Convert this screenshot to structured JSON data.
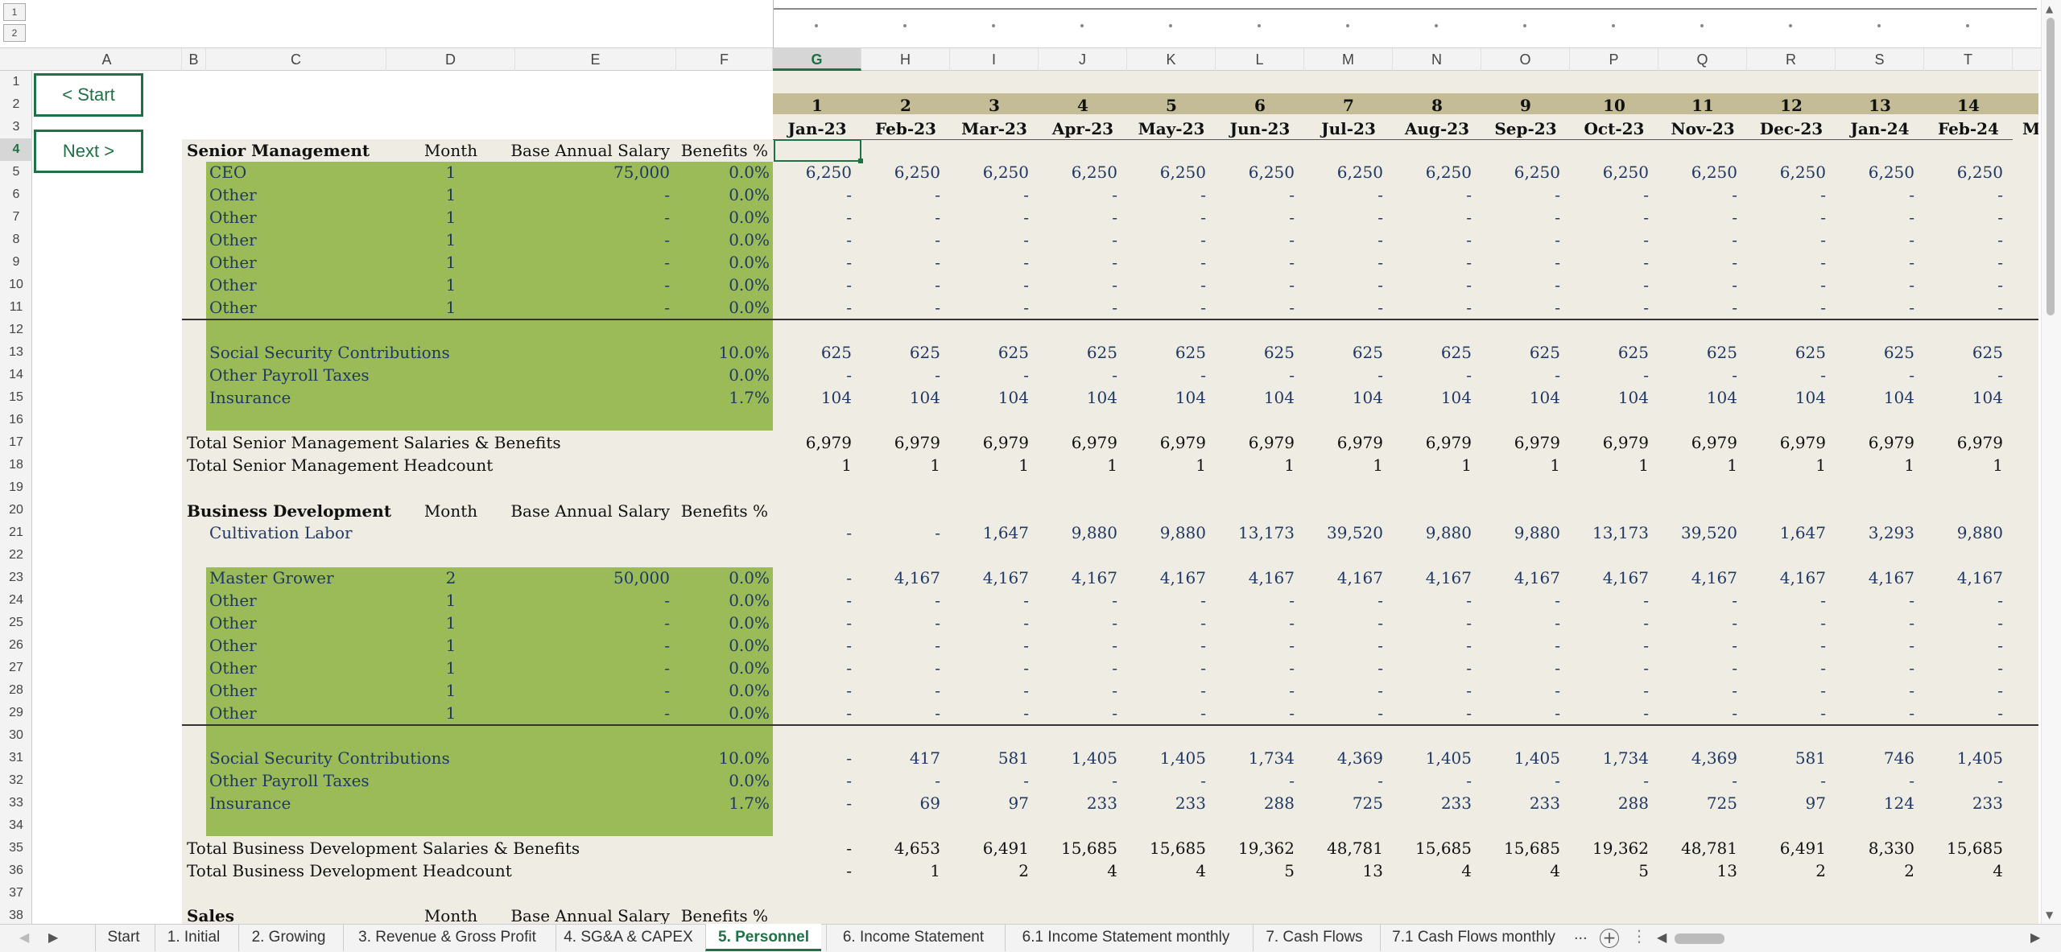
{
  "outline_levels": [
    "1",
    "2"
  ],
  "columns": [
    "A",
    "B",
    "C",
    "D",
    "E",
    "F",
    "G",
    "H",
    "I",
    "J",
    "K",
    "L",
    "M",
    "N",
    "O",
    "P",
    "Q",
    "R",
    "S",
    "T"
  ],
  "rows": [
    "1",
    "2",
    "3",
    "4",
    "5",
    "6",
    "7",
    "8",
    "9",
    "10",
    "11",
    "12",
    "13",
    "14",
    "15",
    "16",
    "17",
    "18",
    "19",
    "20",
    "21",
    "22",
    "23",
    "24",
    "25",
    "26",
    "27",
    "28",
    "29",
    "30",
    "31",
    "32",
    "33",
    "34",
    "35",
    "36",
    "37",
    "38"
  ],
  "buttons": {
    "start": "< Start",
    "next": "Next >"
  },
  "period_numbers": [
    "1",
    "2",
    "3",
    "4",
    "5",
    "6",
    "7",
    "8",
    "9",
    "10",
    "11",
    "12",
    "13",
    "14"
  ],
  "months": [
    "Jan-23",
    "Feb-23",
    "Mar-23",
    "Apr-23",
    "May-23",
    "Jun-23",
    "Jul-23",
    "Aug-23",
    "Sep-23",
    "Oct-23",
    "Nov-23",
    "Dec-23",
    "Jan-24",
    "Feb-24"
  ],
  "months_partial": "M",
  "headers": {
    "month": "Month",
    "salary": "Base Annual Salary",
    "benefits": "Benefits %"
  },
  "sections": {
    "senior": {
      "title": "Senior Management",
      "employees": [
        {
          "name": "CEO",
          "month": "1",
          "salary": "75,000",
          "benefits": "0.0%",
          "values": [
            "6,250",
            "6,250",
            "6,250",
            "6,250",
            "6,250",
            "6,250",
            "6,250",
            "6,250",
            "6,250",
            "6,250",
            "6,250",
            "6,250",
            "6,250",
            "6,250"
          ]
        },
        {
          "name": "Other",
          "month": "1",
          "salary": "-",
          "benefits": "0.0%",
          "values": [
            "-",
            "-",
            "-",
            "-",
            "-",
            "-",
            "-",
            "-",
            "-",
            "-",
            "-",
            "-",
            "-",
            "-"
          ]
        },
        {
          "name": "Other",
          "month": "1",
          "salary": "-",
          "benefits": "0.0%",
          "values": [
            "-",
            "-",
            "-",
            "-",
            "-",
            "-",
            "-",
            "-",
            "-",
            "-",
            "-",
            "-",
            "-",
            "-"
          ]
        },
        {
          "name": "Other",
          "month": "1",
          "salary": "-",
          "benefits": "0.0%",
          "values": [
            "-",
            "-",
            "-",
            "-",
            "-",
            "-",
            "-",
            "-",
            "-",
            "-",
            "-",
            "-",
            "-",
            "-"
          ]
        },
        {
          "name": "Other",
          "month": "1",
          "salary": "-",
          "benefits": "0.0%",
          "values": [
            "-",
            "-",
            "-",
            "-",
            "-",
            "-",
            "-",
            "-",
            "-",
            "-",
            "-",
            "-",
            "-",
            "-"
          ]
        },
        {
          "name": "Other",
          "month": "1",
          "salary": "-",
          "benefits": "0.0%",
          "values": [
            "-",
            "-",
            "-",
            "-",
            "-",
            "-",
            "-",
            "-",
            "-",
            "-",
            "-",
            "-",
            "-",
            "-"
          ]
        },
        {
          "name": "Other",
          "month": "1",
          "salary": "-",
          "benefits": "0.0%",
          "values": [
            "-",
            "-",
            "-",
            "-",
            "-",
            "-",
            "-",
            "-",
            "-",
            "-",
            "-",
            "-",
            "-",
            "-"
          ]
        }
      ],
      "taxes": [
        {
          "name": "Social Security Contributions",
          "rate": "10.0%",
          "values": [
            "625",
            "625",
            "625",
            "625",
            "625",
            "625",
            "625",
            "625",
            "625",
            "625",
            "625",
            "625",
            "625",
            "625"
          ]
        },
        {
          "name": "Other Payroll Taxes",
          "rate": "0.0%",
          "values": [
            "-",
            "-",
            "-",
            "-",
            "-",
            "-",
            "-",
            "-",
            "-",
            "-",
            "-",
            "-",
            "-",
            "-"
          ]
        },
        {
          "name": "Insurance",
          "rate": "1.7%",
          "values": [
            "104",
            "104",
            "104",
            "104",
            "104",
            "104",
            "104",
            "104",
            "104",
            "104",
            "104",
            "104",
            "104",
            "104"
          ]
        }
      ],
      "total_label": "Total Senior Management Salaries & Benefits",
      "total_values": [
        "6,979",
        "6,979",
        "6,979",
        "6,979",
        "6,979",
        "6,979",
        "6,979",
        "6,979",
        "6,979",
        "6,979",
        "6,979",
        "6,979",
        "6,979",
        "6,979"
      ],
      "headcount_label": "Total Senior Management Headcount",
      "headcount_values": [
        "1",
        "1",
        "1",
        "1",
        "1",
        "1",
        "1",
        "1",
        "1",
        "1",
        "1",
        "1",
        "1",
        "1"
      ]
    },
    "bizdev": {
      "title": "Business Development",
      "labor": {
        "name": "Cultivation Labor",
        "values": [
          "-",
          "-",
          "1,647",
          "9,880",
          "9,880",
          "13,173",
          "39,520",
          "9,880",
          "9,880",
          "13,173",
          "39,520",
          "1,647",
          "3,293",
          "9,880"
        ]
      },
      "employees": [
        {
          "name": "Master Grower",
          "month": "2",
          "salary": "50,000",
          "benefits": "0.0%",
          "values": [
            "-",
            "4,167",
            "4,167",
            "4,167",
            "4,167",
            "4,167",
            "4,167",
            "4,167",
            "4,167",
            "4,167",
            "4,167",
            "4,167",
            "4,167",
            "4,167"
          ]
        },
        {
          "name": "Other",
          "month": "1",
          "salary": "-",
          "benefits": "0.0%",
          "values": [
            "-",
            "-",
            "-",
            "-",
            "-",
            "-",
            "-",
            "-",
            "-",
            "-",
            "-",
            "-",
            "-",
            "-"
          ]
        },
        {
          "name": "Other",
          "month": "1",
          "salary": "-",
          "benefits": "0.0%",
          "values": [
            "-",
            "-",
            "-",
            "-",
            "-",
            "-",
            "-",
            "-",
            "-",
            "-",
            "-",
            "-",
            "-",
            "-"
          ]
        },
        {
          "name": "Other",
          "month": "1",
          "salary": "-",
          "benefits": "0.0%",
          "values": [
            "-",
            "-",
            "-",
            "-",
            "-",
            "-",
            "-",
            "-",
            "-",
            "-",
            "-",
            "-",
            "-",
            "-"
          ]
        },
        {
          "name": "Other",
          "month": "1",
          "salary": "-",
          "benefits": "0.0%",
          "values": [
            "-",
            "-",
            "-",
            "-",
            "-",
            "-",
            "-",
            "-",
            "-",
            "-",
            "-",
            "-",
            "-",
            "-"
          ]
        },
        {
          "name": "Other",
          "month": "1",
          "salary": "-",
          "benefits": "0.0%",
          "values": [
            "-",
            "-",
            "-",
            "-",
            "-",
            "-",
            "-",
            "-",
            "-",
            "-",
            "-",
            "-",
            "-",
            "-"
          ]
        },
        {
          "name": "Other",
          "month": "1",
          "salary": "-",
          "benefits": "0.0%",
          "values": [
            "-",
            "-",
            "-",
            "-",
            "-",
            "-",
            "-",
            "-",
            "-",
            "-",
            "-",
            "-",
            "-",
            "-"
          ]
        }
      ],
      "taxes": [
        {
          "name": "Social Security Contributions",
          "rate": "10.0%",
          "values": [
            "-",
            "417",
            "581",
            "1,405",
            "1,405",
            "1,734",
            "4,369",
            "1,405",
            "1,405",
            "1,734",
            "4,369",
            "581",
            "746",
            "1,405"
          ]
        },
        {
          "name": "Other Payroll Taxes",
          "rate": "0.0%",
          "values": [
            "-",
            "-",
            "-",
            "-",
            "-",
            "-",
            "-",
            "-",
            "-",
            "-",
            "-",
            "-",
            "-",
            "-"
          ]
        },
        {
          "name": "Insurance",
          "rate": "1.7%",
          "values": [
            "-",
            "69",
            "97",
            "233",
            "233",
            "288",
            "725",
            "233",
            "233",
            "288",
            "725",
            "97",
            "124",
            "233"
          ]
        }
      ],
      "total_label": "Total Business Development Salaries & Benefits",
      "total_values": [
        "-",
        "4,653",
        "6,491",
        "15,685",
        "15,685",
        "19,362",
        "48,781",
        "15,685",
        "15,685",
        "19,362",
        "48,781",
        "6,491",
        "8,330",
        "15,685"
      ],
      "headcount_label": "Total Business Development Headcount",
      "headcount_values": [
        "-",
        "1",
        "2",
        "4",
        "4",
        "5",
        "13",
        "4",
        "4",
        "5",
        "13",
        "2",
        "2",
        "4"
      ]
    },
    "sales": {
      "title": "Sales"
    }
  },
  "sheet_tabs": [
    "Start",
    "1. Initial",
    "2. Growing",
    "3. Revenue & Gross Profit",
    "4. SG&A & CAPEX",
    "5. Personnel",
    "6. Income Statement",
    "6.1 Income Statement monthly",
    "7. Cash Flows",
    "7.1 Cash Flows monthly"
  ],
  "active_tab": "5. Personnel",
  "tab_overflow": "...",
  "colors": {
    "green": "#9bbb59",
    "beige": "#efede3",
    "tan": "#c4bc96",
    "accent": "#1e7145",
    "text_blue": "#1f3864"
  }
}
